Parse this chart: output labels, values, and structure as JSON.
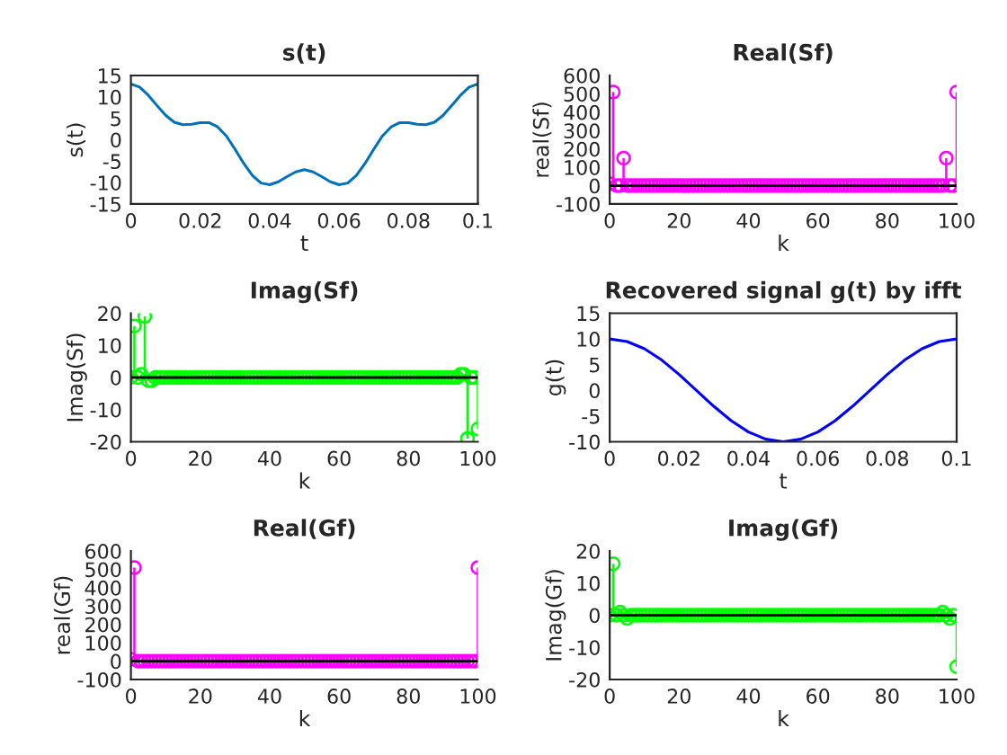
{
  "chart_data": [
    {
      "type": "line",
      "title": "s(t)",
      "xlabel": "t",
      "ylabel": "s(t)",
      "xlim": [
        0,
        0.1
      ],
      "xticks": [
        0,
        0.02,
        0.04,
        0.06,
        0.08,
        0.1
      ],
      "ylim": [
        -15,
        15
      ],
      "yticks": [
        -15,
        -10,
        -5,
        0,
        5,
        10,
        15
      ],
      "grid": false,
      "x": [
        0,
        0.0025,
        0.005,
        0.0075,
        0.01,
        0.0125,
        0.015,
        0.0175,
        0.02,
        0.0225,
        0.025,
        0.0275,
        0.03,
        0.0325,
        0.035,
        0.0375,
        0.04,
        0.0425,
        0.045,
        0.0475,
        0.05,
        0.0525,
        0.055,
        0.0575,
        0.06,
        0.0625,
        0.065,
        0.0675,
        0.07,
        0.0725,
        0.075,
        0.0775,
        0.08,
        0.0825,
        0.085,
        0.0875,
        0.09,
        0.0925,
        0.095,
        0.0975,
        0.1
      ],
      "series": [
        {
          "color": "#0072bd",
          "values": [
            13,
            12.3,
            10.4,
            8.0,
            5.7,
            4.1,
            3.5,
            3.6,
            4.0,
            4.0,
            3.0,
            0.9,
            -2.2,
            -5.5,
            -8.3,
            -10.1,
            -10.5,
            -9.8,
            -8.6,
            -7.5,
            -7,
            -7.5,
            -8.6,
            -9.8,
            -10.5,
            -10.1,
            -8.3,
            -5.5,
            -2.2,
            0.9,
            3.0,
            4.0,
            4.0,
            3.6,
            3.5,
            4.1,
            5.7,
            8.0,
            10.4,
            12.3,
            13
          ]
        }
      ]
    },
    {
      "type": "lollipop",
      "title": "Real(Sf)",
      "xlabel": "k",
      "ylabel": "real(Sf)",
      "xlim": [
        0,
        100
      ],
      "xticks": [
        0,
        20,
        40,
        60,
        80,
        100
      ],
      "ylim": [
        -100,
        600
      ],
      "yticks": [
        -100,
        0,
        100,
        200,
        300,
        400,
        500,
        600
      ],
      "marker": "circle",
      "x": [
        0,
        1,
        2,
        3,
        4,
        5,
        6,
        7,
        8,
        9,
        10,
        11,
        12,
        13,
        14,
        15,
        16,
        17,
        18,
        19,
        20,
        21,
        22,
        23,
        24,
        25,
        26,
        27,
        28,
        29,
        30,
        31,
        32,
        33,
        34,
        35,
        36,
        37,
        38,
        39,
        40,
        41,
        42,
        43,
        44,
        45,
        46,
        47,
        48,
        49,
        50,
        51,
        52,
        53,
        54,
        55,
        56,
        57,
        58,
        59,
        60,
        61,
        62,
        63,
        64,
        65,
        66,
        67,
        68,
        69,
        70,
        71,
        72,
        73,
        74,
        75,
        76,
        77,
        78,
        79,
        80,
        81,
        82,
        83,
        84,
        85,
        86,
        87,
        88,
        89,
        90,
        91,
        92,
        93,
        94,
        95,
        96,
        97,
        98,
        99,
        100
      ],
      "series": [
        {
          "color": "#ff00ff",
          "values": [
            10,
            510,
            0,
            0,
            150,
            0,
            0,
            0,
            0,
            0,
            0,
            0,
            0,
            0,
            0,
            0,
            0,
            0,
            0,
            0,
            0,
            0,
            0,
            0,
            0,
            0,
            0,
            0,
            0,
            0,
            0,
            0,
            0,
            0,
            0,
            0,
            0,
            0,
            0,
            0,
            0,
            0,
            0,
            0,
            0,
            0,
            0,
            0,
            0,
            0,
            0,
            0,
            0,
            0,
            0,
            0,
            0,
            0,
            0,
            0,
            0,
            0,
            0,
            0,
            0,
            0,
            0,
            0,
            0,
            0,
            0,
            0,
            0,
            0,
            0,
            0,
            0,
            0,
            0,
            0,
            0,
            0,
            0,
            0,
            0,
            0,
            0,
            0,
            0,
            0,
            0,
            0,
            0,
            0,
            0,
            0,
            0,
            150,
            0,
            0,
            510
          ]
        }
      ]
    },
    {
      "type": "lollipop",
      "title": "Imag(Sf)",
      "xlabel": "k",
      "ylabel": "Imag(Sf)",
      "xlim": [
        0,
        100
      ],
      "xticks": [
        0,
        20,
        40,
        60,
        80,
        100
      ],
      "ylim": [
        -20,
        20
      ],
      "yticks": [
        -20,
        -10,
        0,
        10,
        20
      ],
      "marker": "circle",
      "x": [
        0,
        1,
        2,
        3,
        4,
        5,
        6,
        7,
        8,
        9,
        10,
        11,
        12,
        13,
        14,
        15,
        16,
        17,
        18,
        19,
        20,
        21,
        22,
        23,
        24,
        25,
        26,
        27,
        28,
        29,
        30,
        31,
        32,
        33,
        34,
        35,
        36,
        37,
        38,
        39,
        40,
        41,
        42,
        43,
        44,
        45,
        46,
        47,
        48,
        49,
        50,
        51,
        52,
        53,
        54,
        55,
        56,
        57,
        58,
        59,
        60,
        61,
        62,
        63,
        64,
        65,
        66,
        67,
        68,
        69,
        70,
        71,
        72,
        73,
        74,
        75,
        76,
        77,
        78,
        79,
        80,
        81,
        82,
        83,
        84,
        85,
        86,
        87,
        88,
        89,
        90,
        91,
        92,
        93,
        94,
        95,
        96,
        97,
        98,
        99,
        100
      ],
      "series": [
        {
          "color": "#00ff00",
          "values": [
            0,
            16,
            0,
            1,
            19,
            -1,
            -1,
            0,
            0,
            0,
            0,
            0,
            0,
            0,
            0,
            0,
            0,
            0,
            0,
            0,
            0,
            0,
            0,
            0,
            0,
            0,
            0,
            0,
            0,
            0,
            0,
            0,
            0,
            0,
            0,
            0,
            0,
            0,
            0,
            0,
            0,
            0,
            0,
            0,
            0,
            0,
            0,
            0,
            0,
            0,
            0,
            0,
            0,
            0,
            0,
            0,
            0,
            0,
            0,
            0,
            0,
            0,
            0,
            0,
            0,
            0,
            0,
            0,
            0,
            0,
            0,
            0,
            0,
            0,
            0,
            0,
            0,
            0,
            0,
            0,
            0,
            0,
            0,
            0,
            0,
            0,
            0,
            0,
            0,
            0,
            0,
            0,
            0,
            0,
            0,
            1,
            1,
            -19,
            0,
            0,
            -16
          ]
        }
      ]
    },
    {
      "type": "line",
      "title": "Recovered signal g(t) by ifft",
      "xlabel": "t",
      "ylabel": "g(t)",
      "xlim": [
        0,
        0.1
      ],
      "xticks": [
        0,
        0.02,
        0.04,
        0.06,
        0.08,
        0.1
      ],
      "ylim": [
        -10,
        15
      ],
      "yticks": [
        -10,
        -5,
        0,
        5,
        10,
        15
      ],
      "grid": false,
      "x": [
        0,
        0.005,
        0.01,
        0.015,
        0.02,
        0.025,
        0.03,
        0.035,
        0.04,
        0.045,
        0.05,
        0.055,
        0.06,
        0.065,
        0.07,
        0.075,
        0.08,
        0.085,
        0.09,
        0.095,
        0.1
      ],
      "series": [
        {
          "color": "#0000ff",
          "values": [
            10,
            9.5,
            8.1,
            5.9,
            3.1,
            0,
            -3.1,
            -5.9,
            -8.1,
            -9.5,
            -10,
            -9.5,
            -8.1,
            -5.9,
            -3.1,
            0,
            3.1,
            5.9,
            8.1,
            9.5,
            10
          ]
        }
      ]
    },
    {
      "type": "lollipop",
      "title": "Real(Gf)",
      "xlabel": "k",
      "ylabel": "real(Gf)",
      "xlim": [
        0,
        100
      ],
      "xticks": [
        0,
        20,
        40,
        60,
        80,
        100
      ],
      "ylim": [
        -100,
        600
      ],
      "yticks": [
        -100,
        0,
        100,
        200,
        300,
        400,
        500,
        600
      ],
      "marker": "circle",
      "x": [
        0,
        1,
        2,
        3,
        4,
        5,
        6,
        7,
        8,
        9,
        10,
        11,
        12,
        13,
        14,
        15,
        16,
        17,
        18,
        19,
        20,
        21,
        22,
        23,
        24,
        25,
        26,
        27,
        28,
        29,
        30,
        31,
        32,
        33,
        34,
        35,
        36,
        37,
        38,
        39,
        40,
        41,
        42,
        43,
        44,
        45,
        46,
        47,
        48,
        49,
        50,
        51,
        52,
        53,
        54,
        55,
        56,
        57,
        58,
        59,
        60,
        61,
        62,
        63,
        64,
        65,
        66,
        67,
        68,
        69,
        70,
        71,
        72,
        73,
        74,
        75,
        76,
        77,
        78,
        79,
        80,
        81,
        82,
        83,
        84,
        85,
        86,
        87,
        88,
        89,
        90,
        91,
        92,
        93,
        94,
        95,
        96,
        97,
        98,
        99,
        100
      ],
      "series": [
        {
          "color": "#ff00ff",
          "values": [
            10,
            510,
            0,
            0,
            0,
            0,
            0,
            0,
            0,
            0,
            0,
            0,
            0,
            0,
            0,
            0,
            0,
            0,
            0,
            0,
            0,
            0,
            0,
            0,
            0,
            0,
            0,
            0,
            0,
            0,
            0,
            0,
            0,
            0,
            0,
            0,
            0,
            0,
            0,
            0,
            0,
            0,
            0,
            0,
            0,
            0,
            0,
            0,
            0,
            0,
            0,
            0,
            0,
            0,
            0,
            0,
            0,
            0,
            0,
            0,
            0,
            0,
            0,
            0,
            0,
            0,
            0,
            0,
            0,
            0,
            0,
            0,
            0,
            0,
            0,
            0,
            0,
            0,
            0,
            0,
            0,
            0,
            0,
            0,
            0,
            0,
            0,
            0,
            0,
            0,
            0,
            0,
            0,
            0,
            0,
            0,
            0,
            0,
            0,
            0,
            510
          ]
        }
      ]
    },
    {
      "type": "lollipop",
      "title": "Imag(Gf)",
      "xlabel": "k",
      "ylabel": "Imag(Gf)",
      "xlim": [
        0,
        100
      ],
      "xticks": [
        0,
        20,
        40,
        60,
        80,
        100
      ],
      "ylim": [
        -20,
        20
      ],
      "yticks": [
        -20,
        -10,
        0,
        10,
        20
      ],
      "marker": "circle",
      "x": [
        0,
        1,
        2,
        3,
        4,
        5,
        6,
        7,
        8,
        9,
        10,
        11,
        12,
        13,
        14,
        15,
        16,
        17,
        18,
        19,
        20,
        21,
        22,
        23,
        24,
        25,
        26,
        27,
        28,
        29,
        30,
        31,
        32,
        33,
        34,
        35,
        36,
        37,
        38,
        39,
        40,
        41,
        42,
        43,
        44,
        45,
        46,
        47,
        48,
        49,
        50,
        51,
        52,
        53,
        54,
        55,
        56,
        57,
        58,
        59,
        60,
        61,
        62,
        63,
        64,
        65,
        66,
        67,
        68,
        69,
        70,
        71,
        72,
        73,
        74,
        75,
        76,
        77,
        78,
        79,
        80,
        81,
        82,
        83,
        84,
        85,
        86,
        87,
        88,
        89,
        90,
        91,
        92,
        93,
        94,
        95,
        96,
        97,
        98,
        99,
        100
      ],
      "series": [
        {
          "color": "#00ff00",
          "values": [
            0,
            16,
            0,
            1,
            0,
            -1,
            0,
            0,
            0,
            0,
            0,
            0,
            0,
            0,
            0,
            0,
            0,
            0,
            0,
            0,
            0,
            0,
            0,
            0,
            0,
            0,
            0,
            0,
            0,
            0,
            0,
            0,
            0,
            0,
            0,
            0,
            0,
            0,
            0,
            0,
            0,
            0,
            0,
            0,
            0,
            0,
            0,
            0,
            0,
            0,
            0,
            0,
            0,
            0,
            0,
            0,
            0,
            0,
            0,
            0,
            0,
            0,
            0,
            0,
            0,
            0,
            0,
            0,
            0,
            0,
            0,
            0,
            0,
            0,
            0,
            0,
            0,
            0,
            0,
            0,
            0,
            0,
            0,
            0,
            0,
            0,
            0,
            0,
            0,
            0,
            0,
            0,
            0,
            0,
            0,
            0,
            1,
            0,
            -1,
            0,
            -16
          ]
        }
      ]
    }
  ]
}
